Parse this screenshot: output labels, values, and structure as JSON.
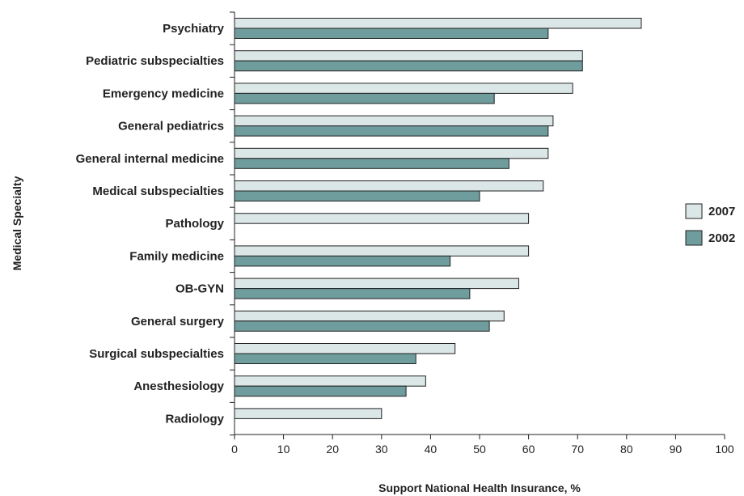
{
  "chart_data": {
    "type": "bar",
    "orientation": "horizontal",
    "categories": [
      "Psychiatry",
      "Pediatric subspecialties",
      "Emergency medicine",
      "General pediatrics",
      "General internal medicine",
      "Medical subspecialties",
      "Pathology",
      "Family medicine",
      "OB-GYN",
      "General surgery",
      "Surgical subspecialties",
      "Anesthesiology",
      "Radiology"
    ],
    "series": [
      {
        "name": "2007",
        "color": "#dbe6e6",
        "values": [
          83,
          71,
          69,
          65,
          64,
          63,
          60,
          60,
          58,
          55,
          45,
          39,
          30
        ]
      },
      {
        "name": "2002",
        "color": "#6f9c9c",
        "values": [
          64,
          71,
          53,
          64,
          56,
          50,
          null,
          44,
          48,
          52,
          37,
          35,
          null
        ]
      }
    ],
    "title": "",
    "xlabel": "Support National Health Insurance, %",
    "ylabel": "Medical Specialty",
    "xlim": [
      0,
      100
    ],
    "xticks": [
      0,
      10,
      20,
      30,
      40,
      50,
      60,
      70,
      80,
      90,
      100
    ],
    "grid": false,
    "legend_position": "right"
  }
}
